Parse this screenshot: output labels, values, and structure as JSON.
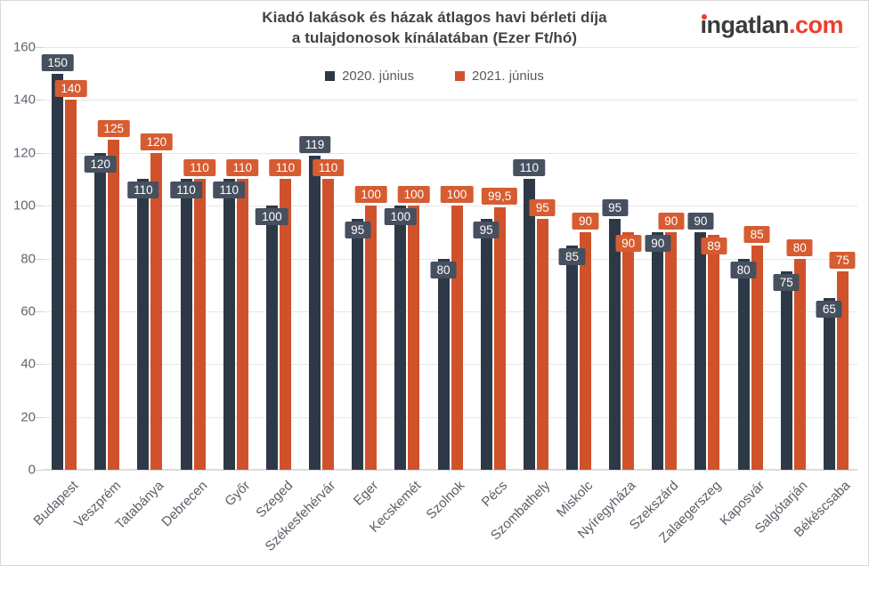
{
  "header": {
    "title_line1": "Kiadó lakások és házak átlagos havi bérleti díja",
    "title_line2": "a tulajdonosok kínálatában (Ezer Ft/hó)",
    "logo": {
      "brand": "ingatlan",
      "tld": ".com",
      "accent_color": "#ee3e2c",
      "text_color": "#3c3c3c"
    }
  },
  "chart_data": {
    "type": "bar",
    "title": "Kiadó lakások és házak átlagos havi bérleti díja a tulajdonosok kínálatában (Ezer Ft/hó)",
    "xlabel": "",
    "ylabel": "",
    "unit": "Ezer Ft/hó",
    "ylim": [
      0,
      160
    ],
    "ytick_step": 20,
    "yticks": [
      0,
      20,
      40,
      60,
      80,
      100,
      120,
      140,
      160
    ],
    "grid": true,
    "legend_position": "top",
    "decimal_separator": ",",
    "categories": [
      "Budapest",
      "Veszprém",
      "Tatabánya",
      "Debrecen",
      "Győr",
      "Szeged",
      "Székesfehérvár",
      "Eger",
      "Kecskemét",
      "Szolnok",
      "Pécs",
      "Szombathely",
      "Miskolc",
      "Nyíregyháza",
      "Szekszárd",
      "Zalaegerszeg",
      "Kaposvár",
      "Salgótarján",
      "Békéscsaba"
    ],
    "series": [
      {
        "name": "2020. június",
        "color": "#2e3947",
        "label_box_color": "#46505f",
        "values": [
          150,
          120,
          110,
          110,
          110,
          100,
          119,
          95,
          100,
          80,
          95,
          110,
          85,
          95,
          90,
          90,
          80,
          75,
          65
        ]
      },
      {
        "name": "2021. június",
        "color": "#d0522b",
        "label_box_color": "#d65c31",
        "values": [
          140,
          125,
          120,
          110,
          110,
          110,
          110,
          100,
          100,
          100,
          99.5,
          95,
          90,
          90,
          90,
          89,
          85,
          80,
          75
        ]
      }
    ]
  }
}
